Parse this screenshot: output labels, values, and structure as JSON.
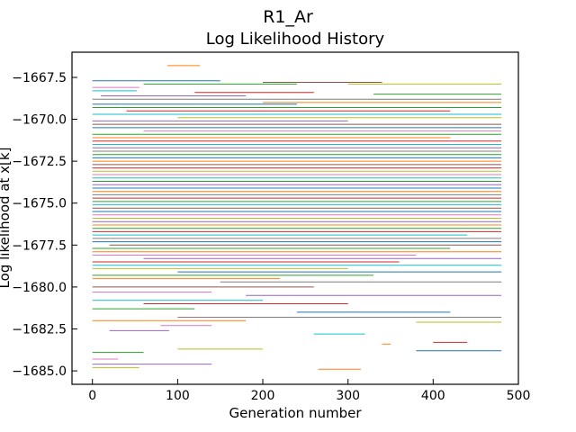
{
  "chart_data": {
    "type": "line",
    "suptitle": "R1_Ar",
    "title": "Log Likelihood History",
    "xlabel": "Generation number",
    "ylabel": "Log likelihood at x[k]",
    "xlim": [
      -24,
      500
    ],
    "ylim": [
      -1685.8,
      -1666.0
    ],
    "x_ticks": [
      0,
      100,
      200,
      300,
      400,
      500
    ],
    "x_tick_labels": [
      "0",
      "100",
      "200",
      "300",
      "400",
      "500"
    ],
    "y_ticks": [
      -1667.5,
      -1670.0,
      -1672.5,
      -1675.0,
      -1677.5,
      -1680.0,
      -1682.5,
      -1685.0
    ],
    "y_tick_labels": [
      "−1667.5",
      "−1670.0",
      "−1672.5",
      "−1675.0",
      "−1677.5",
      "−1680.0",
      "−1682.5",
      "−1685.0"
    ],
    "grid": false,
    "legend": "none",
    "description_of_series": "Hundreds of walker traces; each is a horizontal segment at a constant log-likelihood between a start and end generation.",
    "series": [
      {
        "color": "#ff7f0e",
        "x": [
          88,
          126
        ],
        "y": [
          -1666.8,
          -1666.8
        ]
      },
      {
        "color": "#1f77b4",
        "x": [
          0,
          150
        ],
        "y": [
          -1667.7,
          -1667.7
        ]
      },
      {
        "color": "#2ca02c",
        "x": [
          60,
          240
        ],
        "y": [
          -1667.9,
          -1667.9
        ]
      },
      {
        "color": "#8c564b",
        "x": [
          200,
          340
        ],
        "y": [
          -1667.8,
          -1667.8
        ]
      },
      {
        "color": "#bcbd22",
        "x": [
          300,
          480
        ],
        "y": [
          -1667.9,
          -1667.9
        ]
      },
      {
        "color": "#e377c2",
        "x": [
          0,
          55
        ],
        "y": [
          -1668.1,
          -1668.1
        ]
      },
      {
        "color": "#17becf",
        "x": [
          0,
          52
        ],
        "y": [
          -1668.3,
          -1668.3
        ]
      },
      {
        "color": "#d62728",
        "x": [
          120,
          260
        ],
        "y": [
          -1668.4,
          -1668.4
        ]
      },
      {
        "color": "#2ca02c",
        "x": [
          330,
          480
        ],
        "y": [
          -1668.5,
          -1668.5
        ]
      },
      {
        "color": "#9467bd",
        "x": [
          10,
          180
        ],
        "y": [
          -1668.6,
          -1668.6
        ]
      },
      {
        "color": "#7f7f7f",
        "x": [
          0,
          480
        ],
        "y": [
          -1668.8,
          -1668.8
        ]
      },
      {
        "color": "#ff7f0e",
        "x": [
          200,
          480
        ],
        "y": [
          -1669.0,
          -1669.0
        ]
      },
      {
        "color": "#1f77b4",
        "x": [
          0,
          240
        ],
        "y": [
          -1669.1,
          -1669.1
        ]
      },
      {
        "color": "#2ca02c",
        "x": [
          0,
          480
        ],
        "y": [
          -1669.3,
          -1669.3
        ]
      },
      {
        "color": "#d62728",
        "x": [
          40,
          420
        ],
        "y": [
          -1669.5,
          -1669.5
        ]
      },
      {
        "color": "#17becf",
        "x": [
          0,
          480
        ],
        "y": [
          -1669.7,
          -1669.7
        ]
      },
      {
        "color": "#bcbd22",
        "x": [
          100,
          480
        ],
        "y": [
          -1669.9,
          -1669.9
        ]
      },
      {
        "color": "#9467bd",
        "x": [
          0,
          300
        ],
        "y": [
          -1670.1,
          -1670.1
        ]
      },
      {
        "color": "#8c564b",
        "x": [
          0,
          480
        ],
        "y": [
          -1670.3,
          -1670.3
        ]
      },
      {
        "color": "#1f77b4",
        "x": [
          0,
          480
        ],
        "y": [
          -1670.5,
          -1670.5
        ]
      },
      {
        "color": "#e377c2",
        "x": [
          60,
          480
        ],
        "y": [
          -1670.7,
          -1670.7
        ]
      },
      {
        "color": "#2ca02c",
        "x": [
          0,
          480
        ],
        "y": [
          -1670.9,
          -1670.9
        ]
      },
      {
        "color": "#ff7f0e",
        "x": [
          0,
          420
        ],
        "y": [
          -1671.1,
          -1671.1
        ]
      },
      {
        "color": "#d62728",
        "x": [
          0,
          480
        ],
        "y": [
          -1671.3,
          -1671.3
        ]
      },
      {
        "color": "#17becf",
        "x": [
          0,
          480
        ],
        "y": [
          -1671.5,
          -1671.5
        ]
      },
      {
        "color": "#9467bd",
        "x": [
          0,
          480
        ],
        "y": [
          -1671.7,
          -1671.7
        ]
      },
      {
        "color": "#7f7f7f",
        "x": [
          0,
          480
        ],
        "y": [
          -1671.9,
          -1671.9
        ]
      },
      {
        "color": "#2ca02c",
        "x": [
          0,
          480
        ],
        "y": [
          -1672.1,
          -1672.1
        ]
      },
      {
        "color": "#1f77b4",
        "x": [
          0,
          480
        ],
        "y": [
          -1672.3,
          -1672.3
        ]
      },
      {
        "color": "#ff7f0e",
        "x": [
          0,
          480
        ],
        "y": [
          -1672.5,
          -1672.5
        ]
      },
      {
        "color": "#8c564b",
        "x": [
          0,
          480
        ],
        "y": [
          -1672.7,
          -1672.7
        ]
      },
      {
        "color": "#d62728",
        "x": [
          0,
          480
        ],
        "y": [
          -1672.9,
          -1672.9
        ]
      },
      {
        "color": "#bcbd22",
        "x": [
          0,
          480
        ],
        "y": [
          -1673.1,
          -1673.1
        ]
      },
      {
        "color": "#e377c2",
        "x": [
          0,
          480
        ],
        "y": [
          -1673.3,
          -1673.3
        ]
      },
      {
        "color": "#17becf",
        "x": [
          0,
          480
        ],
        "y": [
          -1673.5,
          -1673.5
        ]
      },
      {
        "color": "#2ca02c",
        "x": [
          0,
          480
        ],
        "y": [
          -1673.7,
          -1673.7
        ]
      },
      {
        "color": "#9467bd",
        "x": [
          0,
          480
        ],
        "y": [
          -1673.9,
          -1673.9
        ]
      },
      {
        "color": "#1f77b4",
        "x": [
          0,
          480
        ],
        "y": [
          -1674.1,
          -1674.1
        ]
      },
      {
        "color": "#ff7f0e",
        "x": [
          0,
          480
        ],
        "y": [
          -1674.3,
          -1674.3
        ]
      },
      {
        "color": "#7f7f7f",
        "x": [
          0,
          480
        ],
        "y": [
          -1674.5,
          -1674.5
        ]
      },
      {
        "color": "#d62728",
        "x": [
          0,
          480
        ],
        "y": [
          -1674.7,
          -1674.7
        ]
      },
      {
        "color": "#2ca02c",
        "x": [
          0,
          480
        ],
        "y": [
          -1674.9,
          -1674.9
        ]
      },
      {
        "color": "#17becf",
        "x": [
          0,
          480
        ],
        "y": [
          -1675.1,
          -1675.1
        ]
      },
      {
        "color": "#8c564b",
        "x": [
          0,
          480
        ],
        "y": [
          -1675.3,
          -1675.3
        ]
      },
      {
        "color": "#1f77b4",
        "x": [
          0,
          480
        ],
        "y": [
          -1675.5,
          -1675.5
        ]
      },
      {
        "color": "#e377c2",
        "x": [
          0,
          480
        ],
        "y": [
          -1675.7,
          -1675.7
        ]
      },
      {
        "color": "#bcbd22",
        "x": [
          0,
          480
        ],
        "y": [
          -1675.9,
          -1675.9
        ]
      },
      {
        "color": "#9467bd",
        "x": [
          0,
          480
        ],
        "y": [
          -1676.1,
          -1676.1
        ]
      },
      {
        "color": "#ff7f0e",
        "x": [
          0,
          480
        ],
        "y": [
          -1676.3,
          -1676.3
        ]
      },
      {
        "color": "#2ca02c",
        "x": [
          0,
          480
        ],
        "y": [
          -1676.5,
          -1676.5
        ]
      },
      {
        "color": "#d62728",
        "x": [
          0,
          480
        ],
        "y": [
          -1676.7,
          -1676.7
        ]
      },
      {
        "color": "#17becf",
        "x": [
          0,
          440
        ],
        "y": [
          -1676.9,
          -1676.9
        ]
      },
      {
        "color": "#7f7f7f",
        "x": [
          0,
          480
        ],
        "y": [
          -1677.1,
          -1677.1
        ]
      },
      {
        "color": "#1f77b4",
        "x": [
          0,
          480
        ],
        "y": [
          -1677.3,
          -1677.3
        ]
      },
      {
        "color": "#8c564b",
        "x": [
          20,
          480
        ],
        "y": [
          -1677.5,
          -1677.5
        ]
      },
      {
        "color": "#2ca02c",
        "x": [
          0,
          420
        ],
        "y": [
          -1677.7,
          -1677.7
        ]
      },
      {
        "color": "#ff7f0e",
        "x": [
          0,
          480
        ],
        "y": [
          -1677.9,
          -1677.9
        ]
      },
      {
        "color": "#e377c2",
        "x": [
          0,
          380
        ],
        "y": [
          -1678.1,
          -1678.1
        ]
      },
      {
        "color": "#9467bd",
        "x": [
          60,
          480
        ],
        "y": [
          -1678.3,
          -1678.3
        ]
      },
      {
        "color": "#d62728",
        "x": [
          0,
          360
        ],
        "y": [
          -1678.5,
          -1678.5
        ]
      },
      {
        "color": "#17becf",
        "x": [
          0,
          480
        ],
        "y": [
          -1678.7,
          -1678.7
        ]
      },
      {
        "color": "#bcbd22",
        "x": [
          0,
          300
        ],
        "y": [
          -1678.9,
          -1678.9
        ]
      },
      {
        "color": "#1f77b4",
        "x": [
          100,
          480
        ],
        "y": [
          -1679.1,
          -1679.1
        ]
      },
      {
        "color": "#2ca02c",
        "x": [
          0,
          330
        ],
        "y": [
          -1679.3,
          -1679.3
        ]
      },
      {
        "color": "#ff7f0e",
        "x": [
          0,
          220
        ],
        "y": [
          -1679.5,
          -1679.5
        ]
      },
      {
        "color": "#7f7f7f",
        "x": [
          150,
          480
        ],
        "y": [
          -1679.7,
          -1679.7
        ]
      },
      {
        "color": "#8c564b",
        "x": [
          0,
          260
        ],
        "y": [
          -1680.0,
          -1680.0
        ]
      },
      {
        "color": "#e377c2",
        "x": [
          0,
          140
        ],
        "y": [
          -1680.3,
          -1680.3
        ]
      },
      {
        "color": "#9467bd",
        "x": [
          180,
          480
        ],
        "y": [
          -1680.5,
          -1680.5
        ]
      },
      {
        "color": "#17becf",
        "x": [
          0,
          200
        ],
        "y": [
          -1680.8,
          -1680.8
        ]
      },
      {
        "color": "#d62728",
        "x": [
          60,
          300
        ],
        "y": [
          -1681.0,
          -1681.0
        ]
      },
      {
        "color": "#2ca02c",
        "x": [
          0,
          120
        ],
        "y": [
          -1681.3,
          -1681.3
        ]
      },
      {
        "color": "#1f77b4",
        "x": [
          240,
          420
        ],
        "y": [
          -1681.5,
          -1681.5
        ]
      },
      {
        "color": "#7f7f7f",
        "x": [
          100,
          480
        ],
        "y": [
          -1681.8,
          -1681.8
        ]
      },
      {
        "color": "#ff7f0e",
        "x": [
          0,
          180
        ],
        "y": [
          -1682.0,
          -1682.0
        ]
      },
      {
        "color": "#bcbd22",
        "x": [
          380,
          480
        ],
        "y": [
          -1682.1,
          -1682.1
        ]
      },
      {
        "color": "#e377c2",
        "x": [
          80,
          140
        ],
        "y": [
          -1682.3,
          -1682.3
        ]
      },
      {
        "color": "#9467bd",
        "x": [
          20,
          90
        ],
        "y": [
          -1682.6,
          -1682.6
        ]
      },
      {
        "color": "#17becf",
        "x": [
          260,
          320
        ],
        "y": [
          -1682.8,
          -1682.8
        ]
      },
      {
        "color": "#d62728",
        "x": [
          400,
          440
        ],
        "y": [
          -1683.3,
          -1683.3
        ]
      },
      {
        "color": "#ff7f0e",
        "x": [
          340,
          350
        ],
        "y": [
          -1683.4,
          -1683.4
        ]
      },
      {
        "color": "#bcbd22",
        "x": [
          100,
          200
        ],
        "y": [
          -1683.7,
          -1683.7
        ]
      },
      {
        "color": "#1f77b4",
        "x": [
          380,
          480
        ],
        "y": [
          -1683.8,
          -1683.8
        ]
      },
      {
        "color": "#2ca02c",
        "x": [
          0,
          60
        ],
        "y": [
          -1683.9,
          -1683.9
        ]
      },
      {
        "color": "#e377c2",
        "x": [
          0,
          30
        ],
        "y": [
          -1684.3,
          -1684.3
        ]
      },
      {
        "color": "#9467bd",
        "x": [
          0,
          140
        ],
        "y": [
          -1684.6,
          -1684.6
        ]
      },
      {
        "color": "#bcbd22",
        "x": [
          0,
          55
        ],
        "y": [
          -1684.8,
          -1684.8
        ]
      },
      {
        "color": "#ff7f0e",
        "x": [
          265,
          315
        ],
        "y": [
          -1684.9,
          -1684.9
        ]
      }
    ]
  }
}
